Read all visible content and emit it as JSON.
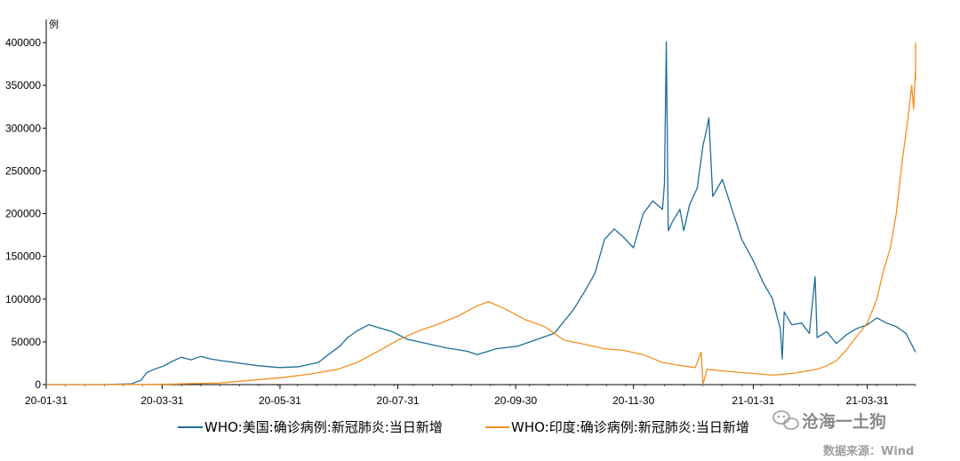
{
  "chart_data": {
    "type": "line",
    "unit_label": "例",
    "ylim": [
      0,
      400000
    ],
    "y_ticks": [
      "0",
      "50000",
      "100000",
      "150000",
      "200000",
      "250000",
      "300000",
      "350000",
      "400000"
    ],
    "x_ticks": [
      "20-01-31",
      "20-03-31",
      "20-05-31",
      "20-07-31",
      "20-09-30",
      "20-11-30",
      "21-01-31",
      "21-03-31"
    ],
    "xlim": [
      "2020-01-31",
      "2021-04-25"
    ],
    "grid": false,
    "legend_position": "bottom",
    "series": [
      {
        "name": "WHO:美国:确诊病例:新冠肺炎:当日新增",
        "color": "#1f6e96",
        "points": [
          [
            "2020-01-31",
            0
          ],
          [
            "2020-02-29",
            0
          ],
          [
            "2020-03-15",
            800
          ],
          [
            "2020-03-20",
            5000
          ],
          [
            "2020-03-23",
            14000
          ],
          [
            "2020-03-27",
            18000
          ],
          [
            "2020-04-01",
            22000
          ],
          [
            "2020-04-05",
            27000
          ],
          [
            "2020-04-10",
            32000
          ],
          [
            "2020-04-15",
            29000
          ],
          [
            "2020-04-20",
            33000
          ],
          [
            "2020-04-25",
            30000
          ],
          [
            "2020-05-01",
            28000
          ],
          [
            "2020-05-10",
            25000
          ],
          [
            "2020-05-20",
            22000
          ],
          [
            "2020-05-31",
            20000
          ],
          [
            "2020-06-10",
            21000
          ],
          [
            "2020-06-20",
            26000
          ],
          [
            "2020-06-25",
            35000
          ],
          [
            "2020-07-01",
            45000
          ],
          [
            "2020-07-05",
            55000
          ],
          [
            "2020-07-10",
            63000
          ],
          [
            "2020-07-16",
            70000
          ],
          [
            "2020-07-22",
            66000
          ],
          [
            "2020-07-28",
            62000
          ],
          [
            "2020-08-05",
            53000
          ],
          [
            "2020-08-15",
            48000
          ],
          [
            "2020-08-25",
            43000
          ],
          [
            "2020-09-05",
            39000
          ],
          [
            "2020-09-10",
            35000
          ],
          [
            "2020-09-20",
            42000
          ],
          [
            "2020-10-01",
            45000
          ],
          [
            "2020-10-10",
            52000
          ],
          [
            "2020-10-20",
            60000
          ],
          [
            "2020-10-30",
            88000
          ],
          [
            "2020-11-05",
            110000
          ],
          [
            "2020-11-10",
            130000
          ],
          [
            "2020-11-15",
            170000
          ],
          [
            "2020-11-20",
            182000
          ],
          [
            "2020-11-25",
            172000
          ],
          [
            "2020-11-30",
            160000
          ],
          [
            "2020-12-05",
            200000
          ],
          [
            "2020-12-10",
            215000
          ],
          [
            "2020-12-15",
            205000
          ],
          [
            "2020-12-16",
            235000
          ],
          [
            "2020-12-17",
            401000
          ],
          [
            "2020-12-18",
            180000
          ],
          [
            "2020-12-20",
            190000
          ],
          [
            "2020-12-24",
            205000
          ],
          [
            "2020-12-26",
            180000
          ],
          [
            "2020-12-29",
            210000
          ],
          [
            "2021-01-02",
            230000
          ],
          [
            "2021-01-05",
            280000
          ],
          [
            "2021-01-07",
            300000
          ],
          [
            "2021-01-08",
            312000
          ],
          [
            "2021-01-10",
            220000
          ],
          [
            "2021-01-15",
            240000
          ],
          [
            "2021-01-20",
            205000
          ],
          [
            "2021-01-25",
            170000
          ],
          [
            "2021-01-31",
            145000
          ],
          [
            "2021-02-05",
            120000
          ],
          [
            "2021-02-10",
            100000
          ],
          [
            "2021-02-14",
            65000
          ],
          [
            "2021-02-15",
            30000
          ],
          [
            "2021-02-16",
            85000
          ],
          [
            "2021-02-20",
            70000
          ],
          [
            "2021-02-25",
            72000
          ],
          [
            "2021-03-01",
            60000
          ],
          [
            "2021-03-04",
            126000
          ],
          [
            "2021-03-05",
            55000
          ],
          [
            "2021-03-10",
            62000
          ],
          [
            "2021-03-15",
            48000
          ],
          [
            "2021-03-20",
            58000
          ],
          [
            "2021-03-25",
            65000
          ],
          [
            "2021-03-31",
            70000
          ],
          [
            "2021-04-05",
            78000
          ],
          [
            "2021-04-10",
            72000
          ],
          [
            "2021-04-15",
            68000
          ],
          [
            "2021-04-20",
            60000
          ],
          [
            "2021-04-25",
            38000
          ]
        ]
      },
      {
        "name": "WHO:印度:确诊病例:新冠肺炎:当日新增",
        "color": "#f39020",
        "points": [
          [
            "2020-01-31",
            0
          ],
          [
            "2020-03-01",
            0
          ],
          [
            "2020-03-31",
            300
          ],
          [
            "2020-04-30",
            2000
          ],
          [
            "2020-05-31",
            8000
          ],
          [
            "2020-06-15",
            12000
          ],
          [
            "2020-06-30",
            18000
          ],
          [
            "2020-07-10",
            26000
          ],
          [
            "2020-07-20",
            38000
          ],
          [
            "2020-07-31",
            52000
          ],
          [
            "2020-08-10",
            62000
          ],
          [
            "2020-08-20",
            70000
          ],
          [
            "2020-08-31",
            80000
          ],
          [
            "2020-09-10",
            92000
          ],
          [
            "2020-09-16",
            97000
          ],
          [
            "2020-09-25",
            88000
          ],
          [
            "2020-10-05",
            76000
          ],
          [
            "2020-10-15",
            68000
          ],
          [
            "2020-10-25",
            52000
          ],
          [
            "2020-11-05",
            47000
          ],
          [
            "2020-11-15",
            42000
          ],
          [
            "2020-11-25",
            40000
          ],
          [
            "2020-12-05",
            35000
          ],
          [
            "2020-12-15",
            26000
          ],
          [
            "2020-12-25",
            22000
          ],
          [
            "2021-01-01",
            20000
          ],
          [
            "2021-01-04",
            38000
          ],
          [
            "2021-01-05",
            0
          ],
          [
            "2021-01-07",
            18000
          ],
          [
            "2021-01-15",
            16000
          ],
          [
            "2021-01-31",
            13000
          ],
          [
            "2021-02-10",
            11000
          ],
          [
            "2021-02-20",
            13000
          ],
          [
            "2021-02-28",
            16000
          ],
          [
            "2021-03-05",
            18000
          ],
          [
            "2021-03-10",
            22000
          ],
          [
            "2021-03-15",
            28000
          ],
          [
            "2021-03-20",
            40000
          ],
          [
            "2021-03-25",
            55000
          ],
          [
            "2021-03-31",
            72000
          ],
          [
            "2021-04-05",
            100000
          ],
          [
            "2021-04-08",
            130000
          ],
          [
            "2021-04-12",
            160000
          ],
          [
            "2021-04-15",
            200000
          ],
          [
            "2021-04-18",
            260000
          ],
          [
            "2021-04-21",
            310000
          ],
          [
            "2021-04-23",
            350000
          ],
          [
            "2021-04-24",
            322000
          ],
          [
            "2021-04-27",
            370000
          ],
          [
            "2021-04-30",
            400000
          ],
          [
            "2021-05-02",
            392000
          ],
          [
            "2021-05-04",
            356000
          ]
        ]
      }
    ]
  },
  "watermark": "沧海一土狗",
  "source": "数据来源：Wind"
}
